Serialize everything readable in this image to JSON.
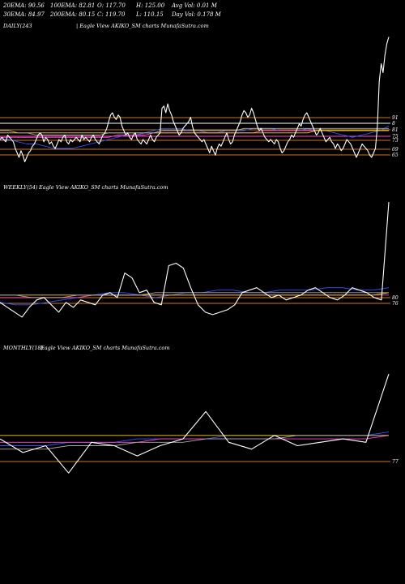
{
  "header": {
    "ema20": "20EMA: 90.56",
    "ema100": "100EMA: 82.81",
    "open": "O: 117.70",
    "high": "H: 125.00",
    "avgvol": "Avg Vol: 0.01 M",
    "ema30": "30EMA: 84.97",
    "ema200": "200EMA: 80.15",
    "close": "C: 119.70",
    "low": "L: 110.15",
    "dayvol": "Day Vol: 0.178 M"
  },
  "chart_data": [
    {
      "type": "line",
      "title": "DAILY(243",
      "caption": "| Eagle  View  AKIKO_SM charts MunafaSutra.com",
      "levels": [
        "91",
        "8",
        "81",
        "75",
        "73",
        "69",
        "65"
      ],
      "series": [
        {
          "color": "#ffffff",
          "values": [
            74,
            75,
            74,
            73,
            76,
            75,
            74,
            73,
            70,
            68,
            66,
            69,
            67,
            64,
            66,
            68,
            69,
            71,
            72,
            74,
            76,
            77,
            76,
            73,
            75,
            74,
            72,
            73,
            71,
            70,
            72,
            74,
            73,
            75,
            76,
            73,
            72,
            74,
            73,
            74,
            75,
            74,
            73,
            76,
            74,
            75,
            74,
            73,
            75,
            76,
            74,
            73,
            72,
            74,
            76,
            77,
            79,
            82,
            85,
            86,
            84,
            83,
            85,
            84,
            80,
            78,
            76,
            77,
            75,
            74,
            76,
            77,
            74,
            73,
            72,
            74,
            73,
            72,
            74,
            76,
            74,
            73,
            75,
            76,
            77,
            88,
            89,
            86,
            90,
            87,
            85,
            82,
            80,
            78,
            76,
            77,
            79,
            80,
            81,
            82,
            84,
            80,
            77,
            76,
            75,
            74,
            73,
            74,
            72,
            70,
            68,
            71,
            69,
            67,
            70,
            72,
            71,
            73,
            75,
            77,
            74,
            72,
            73,
            76,
            78,
            80,
            82,
            85,
            87,
            86,
            84,
            85,
            88,
            86,
            83,
            80,
            78,
            79,
            77,
            75,
            74,
            73,
            74,
            73,
            72,
            74,
            73,
            70,
            68,
            69,
            71,
            73,
            74,
            76,
            75,
            77,
            79,
            81,
            80,
            83,
            85,
            86,
            84,
            82,
            80,
            78,
            76,
            77,
            79,
            77,
            75,
            73,
            74,
            75,
            73,
            72,
            70,
            72,
            71,
            69,
            70,
            72,
            74,
            73,
            72,
            70,
            68,
            66,
            68,
            70,
            72,
            71,
            70,
            69,
            67,
            66,
            68,
            70,
            80,
            100,
            108,
            104,
            112,
            117,
            120
          ]
        },
        {
          "color": "#3355ff",
          "values": [
            74,
            74,
            73,
            72,
            72,
            71,
            70,
            70,
            70,
            71,
            72,
            73,
            74,
            75,
            76,
            76,
            77,
            78,
            79,
            79,
            79,
            78,
            78,
            77,
            77,
            78,
            78,
            78,
            79,
            79,
            79,
            78,
            78,
            78,
            79,
            78,
            78,
            77,
            76,
            75,
            76,
            77,
            78,
            80
          ]
        },
        {
          "color": "#ff44cc",
          "values": [
            75,
            75,
            75,
            75,
            75,
            75,
            75,
            75,
            75,
            75,
            75,
            75,
            75,
            76,
            76,
            76,
            76,
            77,
            77,
            77,
            77,
            77,
            77,
            77,
            77,
            77,
            77,
            77,
            77,
            78,
            78,
            78,
            78,
            78,
            78,
            78,
            78,
            78,
            78,
            78,
            78,
            78,
            78,
            78
          ]
        },
        {
          "color": "#ffd700",
          "values": [
            77,
            77,
            77,
            77,
            77,
            77,
            77,
            77,
            77,
            77,
            77,
            77,
            77,
            77,
            77,
            77,
            77,
            77,
            77,
            77,
            77,
            77,
            77,
            77,
            77,
            77,
            77,
            77,
            77,
            77,
            77,
            77,
            77,
            77,
            77,
            78,
            78,
            78,
            78,
            78,
            78,
            78,
            78,
            78
          ]
        },
        {
          "color": "#aaaaaa",
          "values": [
            78,
            78,
            77,
            77,
            76,
            76,
            76,
            76,
            76,
            76,
            76,
            76,
            77,
            77,
            77,
            77,
            77,
            77,
            78,
            78,
            78,
            78,
            78,
            78,
            78,
            78,
            78,
            79,
            79,
            79,
            79,
            79,
            79,
            79,
            79,
            79,
            79,
            79,
            79,
            79,
            79,
            79,
            79,
            79
          ]
        }
      ]
    },
    {
      "type": "line",
      "title": "WEEKLY(54)",
      "caption": "Eagle  View  AKIKO_SM charts MunafaSutra.com",
      "levels": [
        "80",
        "76"
      ],
      "series": [
        {
          "color": "#ffffff",
          "values": [
            74,
            72,
            70,
            68,
            72,
            75,
            76,
            73,
            70,
            74,
            72,
            75,
            74,
            73,
            77,
            78,
            76,
            86,
            84,
            78,
            79,
            74,
            73,
            89,
            90,
            88,
            80,
            73,
            70,
            69,
            70,
            71,
            73,
            78,
            79,
            80,
            78,
            76,
            77,
            75,
            76,
            77,
            79,
            80,
            78,
            76,
            75,
            77,
            80,
            79,
            78,
            76,
            75,
            115
          ]
        },
        {
          "color": "#3355ff",
          "values": [
            74,
            73,
            73,
            74,
            75,
            76,
            77,
            78,
            78,
            77,
            76,
            77,
            78,
            78,
            79,
            79,
            78,
            78,
            79,
            79,
            79,
            80,
            80,
            79,
            79,
            80
          ]
        },
        {
          "color": "#ff44cc",
          "values": [
            76,
            76,
            76,
            76,
            76,
            76,
            77,
            77,
            77,
            77,
            77,
            77,
            77,
            77,
            77,
            77,
            77,
            77,
            77,
            77,
            77,
            77,
            77,
            77,
            77,
            77
          ]
        },
        {
          "color": "#ffd700",
          "values": [
            77,
            77,
            77,
            77,
            77,
            77,
            77,
            77,
            77,
            77,
            77,
            77,
            77,
            77,
            77,
            77,
            77,
            77,
            77,
            77,
            77,
            77,
            77,
            77,
            77,
            78
          ]
        },
        {
          "color": "#aaaaaa",
          "values": [
            77,
            77,
            76,
            76,
            76,
            77,
            77,
            77,
            77,
            77,
            78,
            78,
            78,
            78,
            78,
            78,
            78,
            78,
            78,
            78,
            78,
            78,
            78,
            78,
            78,
            78
          ]
        }
      ]
    },
    {
      "type": "line",
      "title": "MONTHLY(18)",
      "caption": "Eagle  View  AKIKO_SM charts MunafaSutra.com",
      "levels": [
        "77"
      ],
      "series": [
        {
          "color": "#ffffff",
          "values": [
            76,
            72,
            74,
            66,
            75,
            74,
            71,
            74,
            76,
            84,
            75,
            73,
            77,
            74,
            75,
            76,
            75,
            95
          ]
        },
        {
          "color": "#3355ff",
          "values": [
            74,
            74,
            74,
            75,
            75,
            75,
            76,
            76,
            76,
            76,
            77,
            77,
            77,
            77,
            77,
            77,
            77,
            78
          ]
        },
        {
          "color": "#ff44cc",
          "values": [
            75,
            75,
            75,
            75,
            75,
            75,
            75,
            76,
            76,
            76,
            76,
            76,
            76,
            76,
            76,
            76,
            76,
            77
          ]
        },
        {
          "color": "#ffd700",
          "values": [
            77,
            77,
            77,
            77,
            77,
            77,
            77,
            77,
            77,
            77,
            77,
            77,
            77,
            77,
            77,
            77,
            77,
            77
          ]
        },
        {
          "color": "#aaaaaa",
          "values": [
            73,
            73,
            73,
            74,
            74,
            74,
            75,
            75,
            75,
            76,
            76,
            76,
            76,
            77,
            77,
            77,
            77,
            77
          ]
        }
      ]
    }
  ]
}
